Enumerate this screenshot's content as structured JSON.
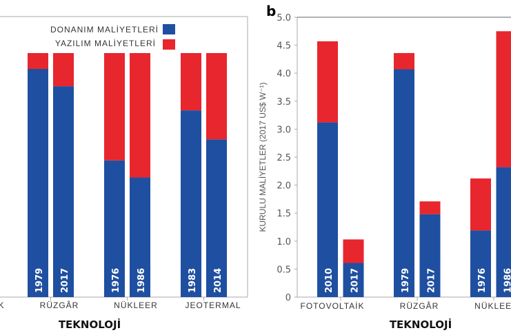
{
  "colors": {
    "hardware": "#1f4fa0",
    "software": "#e8262d"
  },
  "legend": {
    "hardware": "DONANIM MALİYETLERİ",
    "software": "YAZILIM MALİYETLERİ"
  },
  "chart_data": [
    {
      "type": "bar",
      "stacked": true,
      "normalized": true,
      "xlabel": "TEKNOLOJİ",
      "categories": [
        "FOTOVOLTAİK",
        "RÜZGÂR",
        "NÜKLEER",
        "JEOTERMAL"
      ],
      "groups": [
        {
          "category": "FOTOVOLTAİK",
          "bars": []
        },
        {
          "category": "RÜZGÂR",
          "bars": [
            {
              "year": "1979",
              "hardware": 0.935,
              "software": 0.065
            },
            {
              "year": "2017",
              "hardware": 0.864,
              "software": 0.136
            }
          ]
        },
        {
          "category": "NÜKLEER",
          "bars": [
            {
              "year": "1976",
              "hardware": 0.56,
              "software": 0.44
            },
            {
              "year": "1986",
              "hardware": 0.49,
              "software": 0.51
            }
          ]
        },
        {
          "category": "JEOTERMAL",
          "bars": [
            {
              "year": "1983",
              "hardware": 0.765,
              "software": 0.235
            },
            {
              "year": "2014",
              "hardware": 0.646,
              "software": 0.354
            }
          ]
        }
      ],
      "legend_position": "top-right"
    },
    {
      "type": "bar",
      "stacked": true,
      "panel_label": "b",
      "xlabel": "TEKNOLOJİ",
      "ylabel": "KURULU MALİYETLER (2017 US$ W⁻¹)",
      "ylim": [
        0,
        5.0
      ],
      "yticks": [
        "0",
        "0.5",
        "1.0",
        "1.5",
        "2.0",
        "2.5",
        "3.0",
        "3.5",
        "4.0",
        "4.5",
        "5.0"
      ],
      "categories": [
        "FOTOVOLTAİK",
        "RÜZGÂR",
        "NÜKLEER"
      ],
      "groups": [
        {
          "category": "FOTOVOLTAİK",
          "bars": [
            {
              "year": "2010",
              "hardware": 3.12,
              "total": 4.57
            },
            {
              "year": "2017",
              "hardware": 0.61,
              "total": 1.03
            }
          ]
        },
        {
          "category": "RÜZGÂR",
          "bars": [
            {
              "year": "1979",
              "hardware": 4.07,
              "total": 4.36
            },
            {
              "year": "2017",
              "hardware": 1.48,
              "total": 1.71
            }
          ]
        },
        {
          "category": "NÜKLEER",
          "bars": [
            {
              "year": "1976",
              "hardware": 1.19,
              "total": 2.12
            },
            {
              "year": "1986",
              "hardware": 2.32,
              "total": 4.75
            }
          ]
        }
      ]
    }
  ]
}
